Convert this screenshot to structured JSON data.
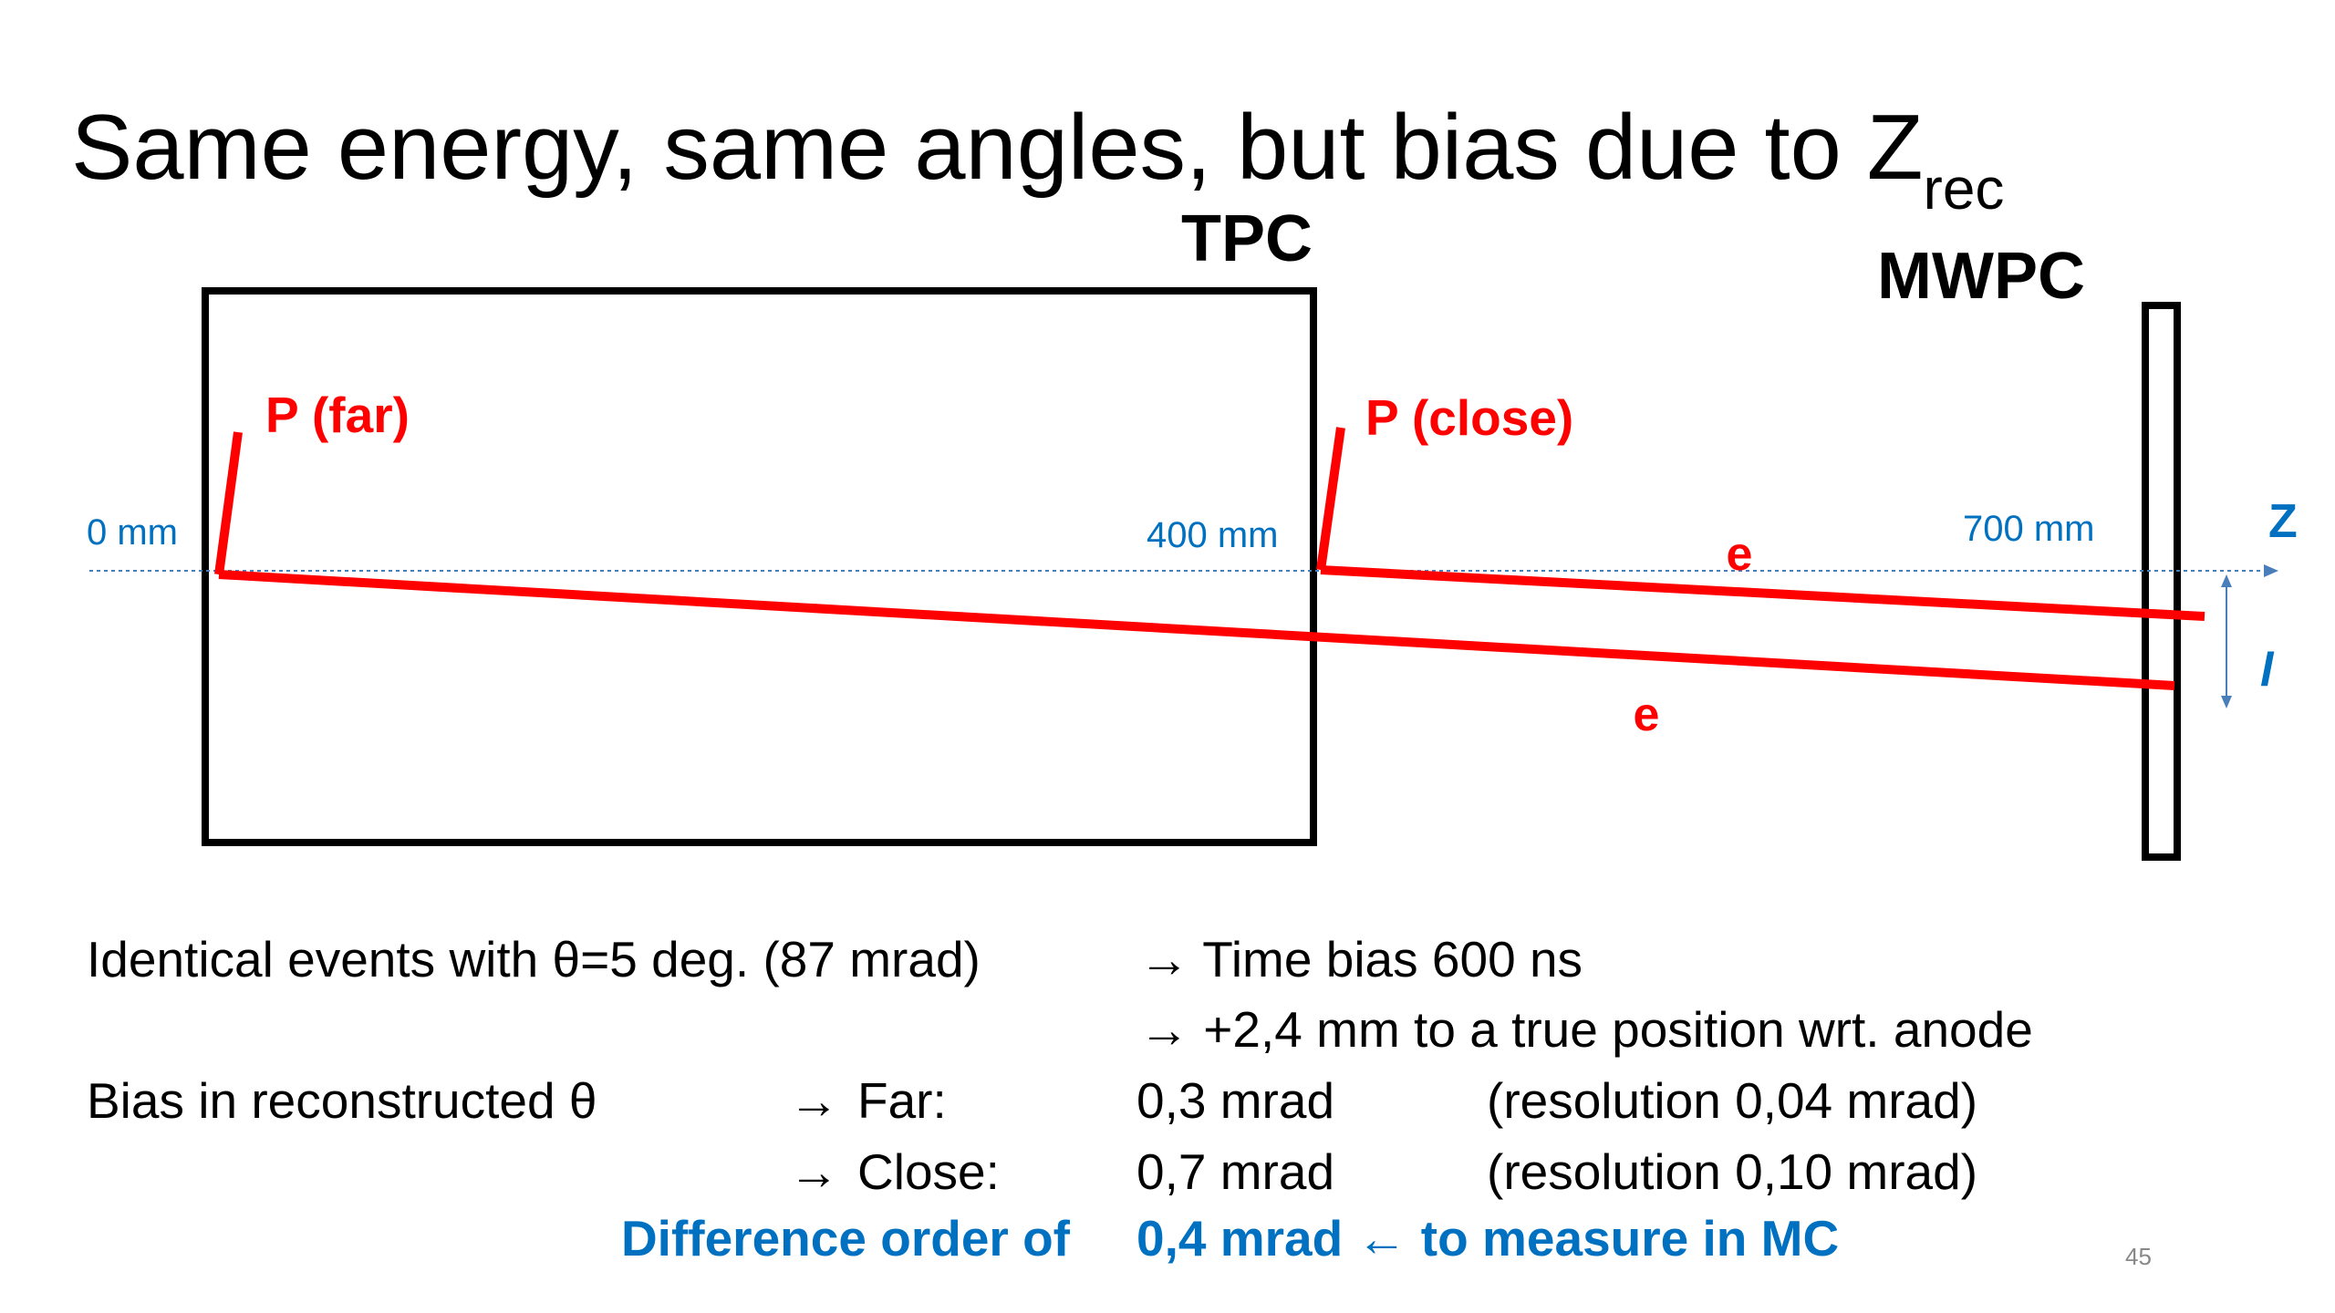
{
  "header": {
    "title": "Same energy, same angles, but bias due to Z",
    "title_subscript": "rec"
  },
  "diagram": {
    "tpc_label": "TPC",
    "mwpc_label": "MWPC",
    "p_far": "P (far)",
    "p_close": "P (close)",
    "pos_0": "0 mm",
    "pos_400": "400 mm",
    "pos_700": "700 mm",
    "e_upper": "e",
    "e_lower": "e",
    "axis_z": "Z",
    "axis_l": "l"
  },
  "text": {
    "row1": {
      "left": "Identical events with θ=5 deg. (87 mrad)",
      "right": "→ Time bias 600 ns"
    },
    "row2": {
      "right": "→ +2,4 mm to a true position wrt. anode"
    },
    "row3": {
      "left": "Bias in reconstructed θ",
      "arrow": "→",
      "label": "Far:",
      "value": "0,3 mrad",
      "resolution": "(resolution 0,04 mrad)"
    },
    "row4": {
      "arrow": "→",
      "label": "Close:",
      "value": "0,7 mrad",
      "resolution": "(resolution 0,10 mrad)"
    },
    "row5": {
      "left": "Difference order of",
      "right": "0,4 mrad ← to measure in MC"
    }
  },
  "footer": {
    "page_number": "45"
  }
}
